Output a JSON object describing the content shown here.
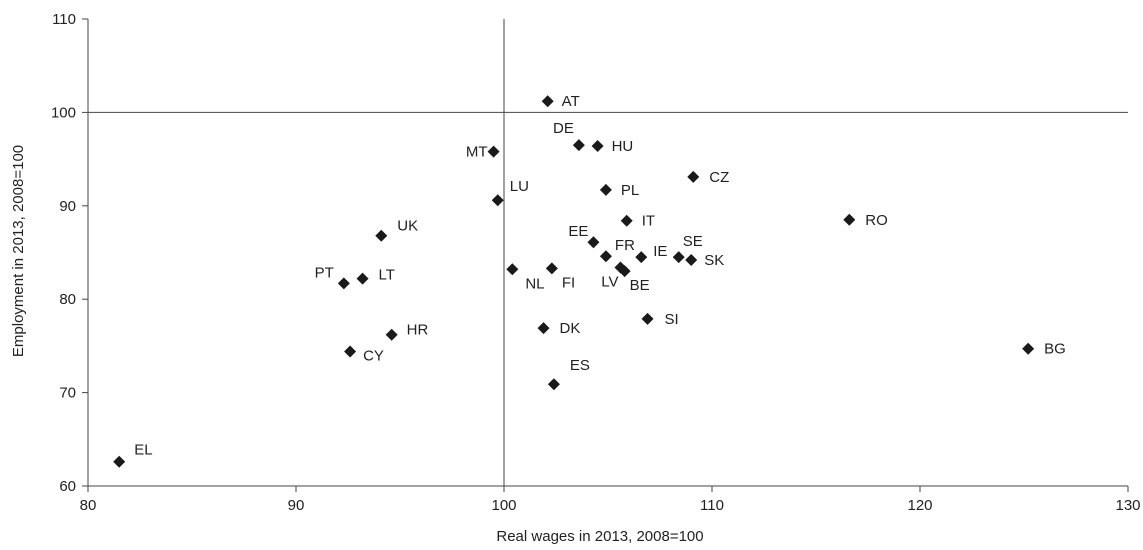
{
  "chart_data": {
    "type": "scatter",
    "xlabel": "Real wages in 2013, 2008=100",
    "ylabel": "Employment in 2013, 2008=100",
    "xlim": [
      80,
      130
    ],
    "ylim": [
      60,
      110
    ],
    "xticks": [
      80,
      90,
      100,
      110,
      120,
      130
    ],
    "yticks": [
      60,
      70,
      80,
      90,
      100,
      110
    ],
    "reference_lines": {
      "x": 100,
      "y": 100
    },
    "grid": false,
    "marker": "diamond",
    "marker_color": "#1a1a1a",
    "points": [
      {
        "label": "AT",
        "x": 102.1,
        "y": 101.2
      },
      {
        "label": "DE",
        "x": 103.6,
        "y": 96.5
      },
      {
        "label": "HU",
        "x": 104.5,
        "y": 96.4
      },
      {
        "label": "MT",
        "x": 99.5,
        "y": 95.8
      },
      {
        "label": "CZ",
        "x": 109.1,
        "y": 93.1
      },
      {
        "label": "PL",
        "x": 104.9,
        "y": 91.7
      },
      {
        "label": "LU",
        "x": 99.7,
        "y": 90.6
      },
      {
        "label": "RO",
        "x": 116.6,
        "y": 88.5
      },
      {
        "label": "IT",
        "x": 105.9,
        "y": 88.4
      },
      {
        "label": "UK",
        "x": 94.1,
        "y": 86.8
      },
      {
        "label": "EE",
        "x": 104.3,
        "y": 86.1
      },
      {
        "label": "FR",
        "x": 104.9,
        "y": 84.6
      },
      {
        "label": "IE",
        "x": 106.6,
        "y": 84.5
      },
      {
        "label": "SE",
        "x": 108.4,
        "y": 84.5
      },
      {
        "label": "SK",
        "x": 109.0,
        "y": 84.2
      },
      {
        "label": "LV",
        "x": 105.6,
        "y": 83.4
      },
      {
        "label": "BE",
        "x": 105.8,
        "y": 83.0
      },
      {
        "label": "NL",
        "x": 100.4,
        "y": 83.2
      },
      {
        "label": "FI",
        "x": 102.3,
        "y": 83.3
      },
      {
        "label": "LT",
        "x": 93.2,
        "y": 82.2
      },
      {
        "label": "PT",
        "x": 92.3,
        "y": 81.7
      },
      {
        "label": "SI",
        "x": 106.9,
        "y": 77.9
      },
      {
        "label": "DK",
        "x": 101.9,
        "y": 76.9
      },
      {
        "label": "HR",
        "x": 94.6,
        "y": 76.2
      },
      {
        "label": "BG",
        "x": 125.2,
        "y": 74.7
      },
      {
        "label": "CY",
        "x": 92.6,
        "y": 74.4
      },
      {
        "label": "ES",
        "x": 102.4,
        "y": 70.9
      },
      {
        "label": "EL",
        "x": 81.5,
        "y": 62.6
      }
    ]
  }
}
